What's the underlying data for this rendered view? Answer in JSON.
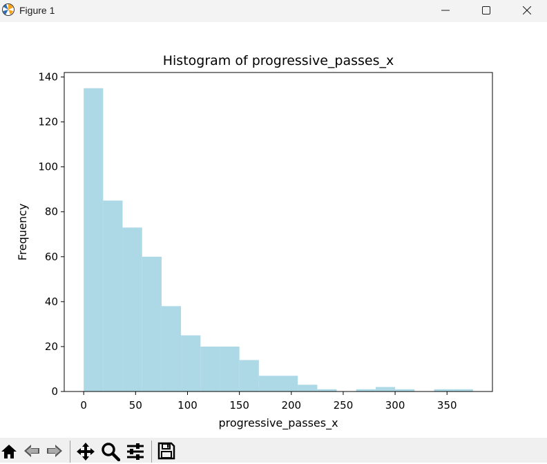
{
  "window": {
    "title": "Figure 1",
    "icons": [
      "app-icon",
      "minimize-icon",
      "maximize-icon",
      "close-icon"
    ]
  },
  "toolbar": {
    "icons": [
      "home-icon",
      "back-icon",
      "forward-icon",
      "pan-icon",
      "zoom-icon",
      "configure-subplots-icon",
      "save-icon"
    ]
  },
  "colors": {
    "bar": "#add8e6",
    "titlebar": "#f3f3f3",
    "toolbar": "#f0f0f0"
  },
  "chart_data": {
    "type": "bar",
    "title": "Histogram of progressive_passes_x",
    "xlabel": "progressive_passes_x",
    "ylabel": "Frequency",
    "xlim": [
      -18.75,
      393.75
    ],
    "ylim": [
      0,
      142
    ],
    "x_ticks": [
      0,
      50,
      100,
      150,
      200,
      250,
      300,
      350
    ],
    "y_ticks": [
      0,
      20,
      40,
      60,
      80,
      100,
      120,
      140
    ],
    "bin_width": 18.75,
    "bin_starts": [
      0,
      18.75,
      37.5,
      56.25,
      75,
      93.75,
      112.5,
      131.25,
      150,
      168.75,
      187.5,
      206.25,
      225,
      243.75,
      262.5,
      281.25,
      300,
      318.75,
      337.5,
      356.25
    ],
    "values": [
      135,
      85,
      73,
      60,
      38,
      25,
      20,
      20,
      14,
      7,
      7,
      3,
      1,
      0,
      1,
      2,
      1,
      0,
      1,
      1
    ],
    "grid": false,
    "legend": "none"
  }
}
